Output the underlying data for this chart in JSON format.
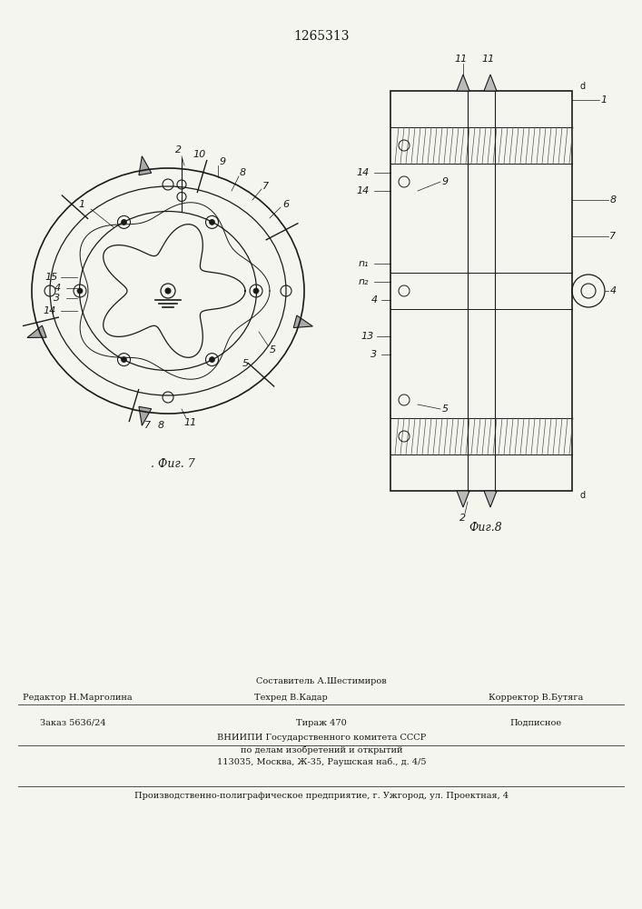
{
  "patent_number": "1265313",
  "background_color": "#f5f5f0",
  "line_color": "#1a1a1a",
  "fig7_caption": ". Фиг. 7",
  "fig8_caption": "Фиг.8",
  "footer_line1_left": "Редактор Н.Марголина",
  "footer_line1_center": "Составитель А.Шестимиров",
  "footer_line1_right": "Корректор В.Бутяга",
  "footer_line2_center": "Техред В.Кадар",
  "footer_zakaz": "Заказ 5636/24",
  "footer_tirazh": "Тираж 470",
  "footer_podpisnoe": "Подписное",
  "footer_vniipи": "ВНИИПИ Государственного комитета СССР",
  "footer_po_delam": "по делам изобретений и открытий",
  "footer_address": "113035, Москва, Ж-35, Раушская наб., д. 4/5",
  "footer_proizv": "Производственно-полиграфическое предприятие, г. Ужгород, ул. Проектная, 4"
}
